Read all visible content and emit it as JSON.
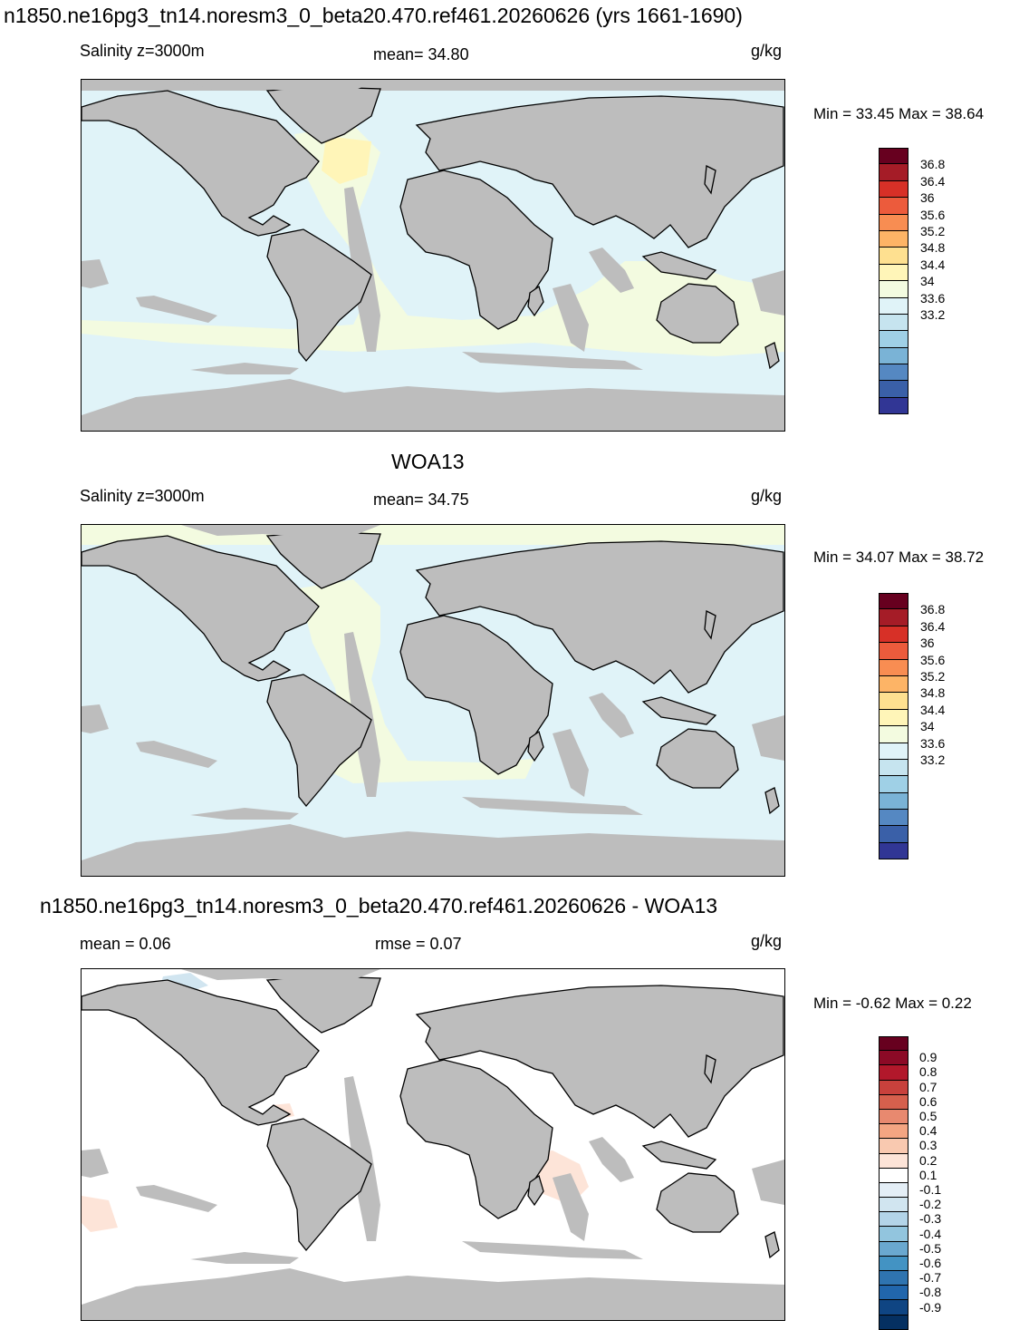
{
  "panel1": {
    "title": "n1850.ne16pg3_tn14.noresm3_0_beta20.470.ref461.20260626 (yrs 1661-1690)",
    "left_label": "Salinity z=3000m",
    "center_label": "mean=  34.80",
    "units": "g/kg",
    "minmax": "Min =  33.45 Max =  38.64",
    "colorbar_ticks": [
      "36.8",
      "36.4",
      "36",
      "35.6",
      "35.2",
      "34.8",
      "34.4",
      "34",
      "33.6",
      "33.2"
    ]
  },
  "panel2": {
    "title": "WOA13",
    "left_label": "Salinity z=3000m",
    "center_label": "mean=  34.75",
    "units": "g/kg",
    "minmax": "Min =  34.07 Max =  38.72",
    "colorbar_ticks": [
      "36.8",
      "36.4",
      "36",
      "35.6",
      "35.2",
      "34.8",
      "34.4",
      "34",
      "33.6",
      "33.2"
    ]
  },
  "panel3": {
    "title": "n1850.ne16pg3_tn14.noresm3_0_beta20.470.ref461.20260626 - WOA13",
    "left_label": "mean =   0.06",
    "center_label": "rmse =   0.07",
    "units": "g/kg",
    "minmax": "Min =  -0.62 Max =   0.22",
    "colorbar_ticks": [
      "0.9",
      "0.8",
      "0.7",
      "0.6",
      "0.5",
      "0.4",
      "0.3",
      "0.2",
      "0.1",
      "-0.1",
      "-0.2",
      "-0.3",
      "-0.4",
      "-0.5",
      "-0.6",
      "-0.7",
      "-0.8",
      "-0.9"
    ]
  },
  "colors": {
    "land": "#bdbdbd",
    "abs_colorbar": [
      "#67001f",
      "#a51c27",
      "#d73027",
      "#ec5b3c",
      "#f88d52",
      "#fdb466",
      "#fee090",
      "#fff5b8",
      "#f3fbe0",
      "#e0f3f8",
      "#c6e4ef",
      "#9fd0e6",
      "#7ab3d6",
      "#5588c2",
      "#3a60a8",
      "#313695"
    ],
    "diff_colorbar": [
      "#67001f",
      "#8c0a26",
      "#b2182b",
      "#c8413c",
      "#d6604d",
      "#e8896f",
      "#f4a582",
      "#f9c9b0",
      "#fde4d8",
      "#ffffff",
      "#ffffff",
      "#e4eef6",
      "#d1e5f0",
      "#b3d4e8",
      "#92c5de",
      "#6aa8cf",
      "#4393c3",
      "#2f74b0",
      "#2166ac",
      "#0f4583",
      "#053061"
    ]
  }
}
